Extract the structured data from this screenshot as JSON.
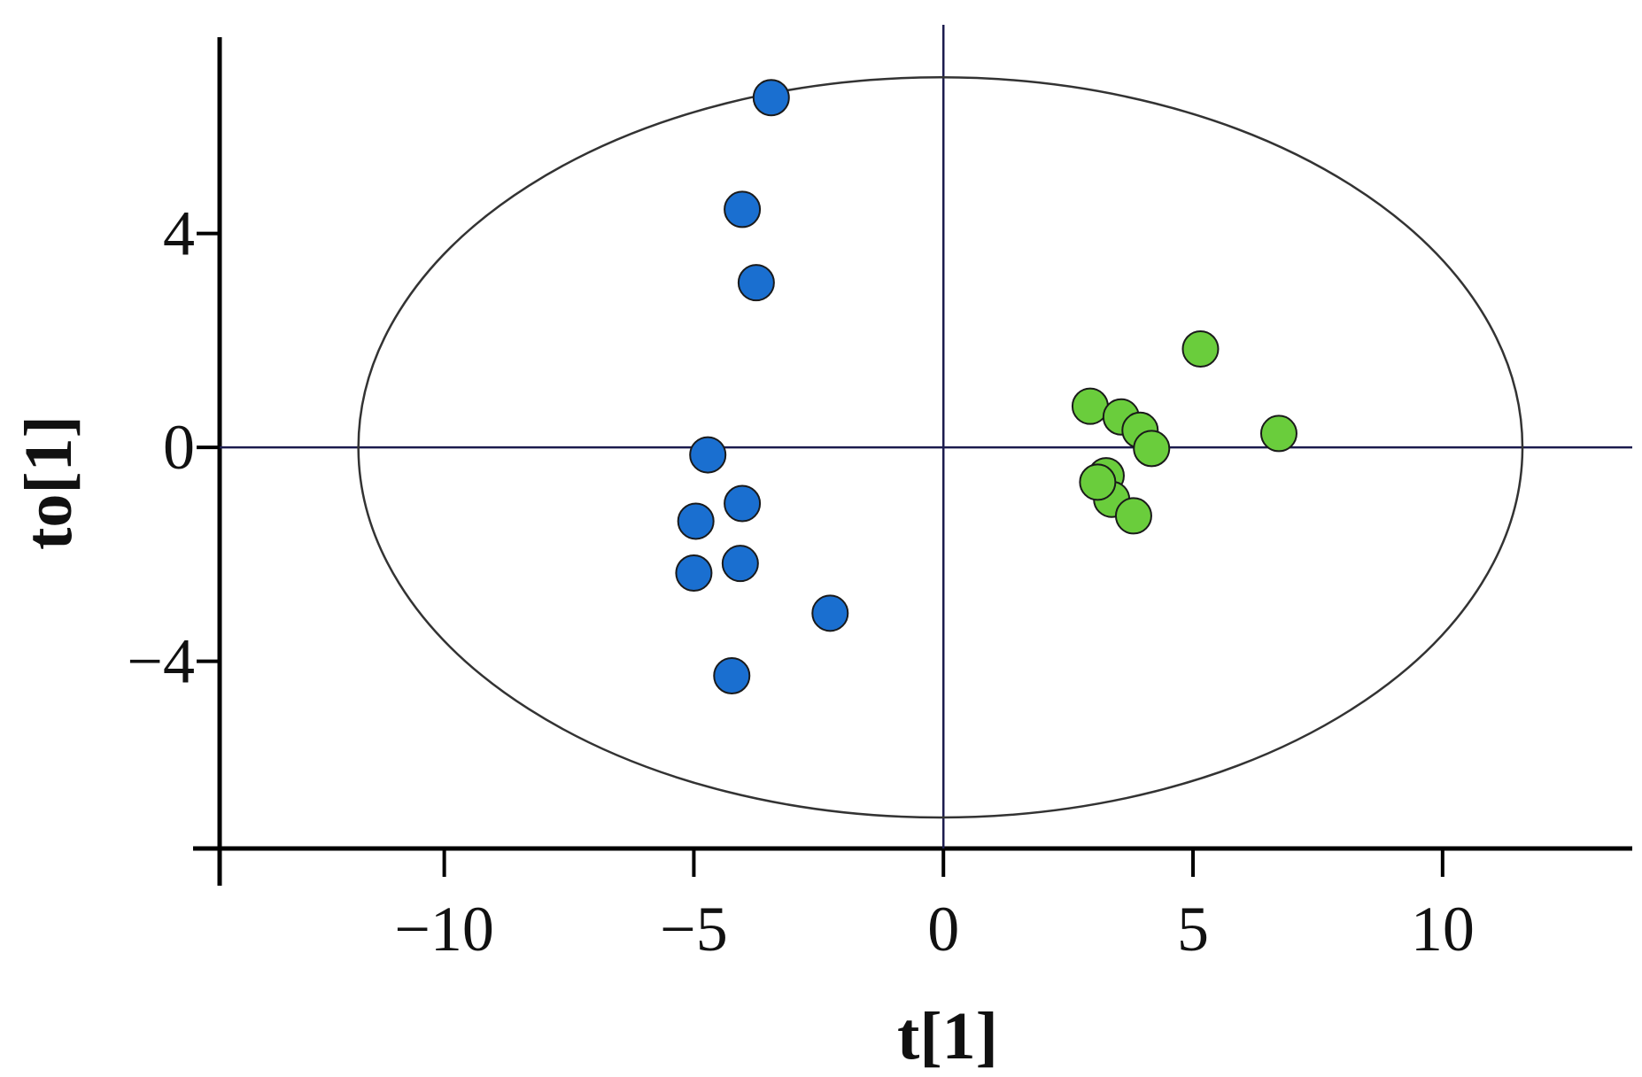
{
  "chart_data": {
    "type": "scatter",
    "x_label": "t[1]",
    "y_label": "to[1]",
    "xlim": [
      -14.5,
      13.8
    ],
    "ylim": [
      -7.5,
      7.67
    ],
    "xticks": [
      {
        "value": -10,
        "label": "−10"
      },
      {
        "value": -5,
        "label": "−5"
      },
      0,
      5,
      10
    ],
    "yticks": [
      {
        "value": -4,
        "label": "−4"
      },
      0,
      4
    ],
    "zero_lines": true,
    "ellipse": {
      "center": [
        -0.06,
        0
      ],
      "radii": [
        11.66,
        6.92
      ]
    },
    "series": [
      {
        "color": "#1a6fd0",
        "x": [
          -3.45,
          -4.03,
          -3.75,
          -4.72,
          -4.03,
          -4.96,
          -4.07,
          -5.0,
          -2.27,
          -4.24
        ],
        "values": [
          6.54,
          4.45,
          3.08,
          -0.14,
          -1.05,
          -1.38,
          -2.17,
          -2.35,
          -3.1,
          -4.27
        ]
      },
      {
        "color": "#6acd3c",
        "x": [
          5.15,
          2.94,
          3.56,
          3.94,
          4.17,
          6.72,
          3.26,
          3.37,
          3.09,
          3.81
        ],
        "values": [
          1.84,
          0.77,
          0.57,
          0.32,
          -0.02,
          0.26,
          -0.53,
          -0.97,
          -0.65,
          -1.28
        ]
      }
    ]
  }
}
